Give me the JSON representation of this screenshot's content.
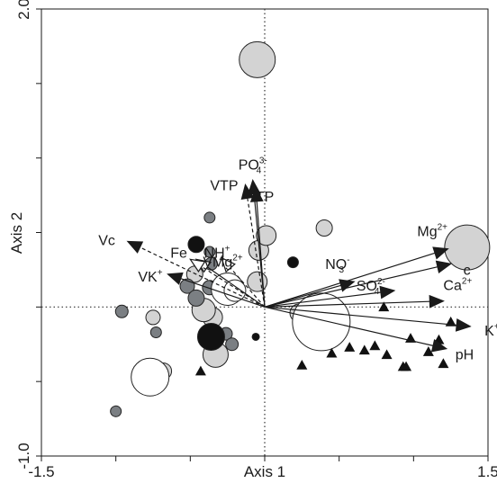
{
  "chart_data": {
    "type": "scatter",
    "title": "",
    "xlabel": "Axis 1",
    "ylabel": "Axis 2",
    "xlim": [
      -1.5,
      1.5
    ],
    "ylim": [
      -1.0,
      2.0
    ],
    "x_ticks": [
      -1.5,
      -1.0,
      -0.5,
      0.0,
      0.5,
      1.0,
      1.5
    ],
    "y_ticks": [
      -1.0,
      -0.5,
      0.0,
      0.5,
      1.0,
      1.5,
      2.0
    ],
    "x_tick_labels": [
      {
        "value": -1.5,
        "label": "-1.5"
      },
      {
        "value": 1.5,
        "label": "1.5"
      }
    ],
    "y_tick_labels": [
      {
        "value": 2.0,
        "label": "2.0"
      },
      {
        "value": -1.0,
        "label": "-1.0"
      }
    ],
    "origin_lines": "dotted",
    "grid": false,
    "vectors": [
      {
        "label": "PO",
        "sub": "4",
        "sup": "3-",
        "x": -0.08,
        "y": 0.85,
        "style": "solid",
        "head": "filled"
      },
      {
        "label": "VTP",
        "x": -0.13,
        "y": 0.82,
        "style": "dashed",
        "head": "filled"
      },
      {
        "label": "TP",
        "x": -0.06,
        "y": 0.8,
        "style": "solid",
        "head": "filled"
      },
      {
        "label": "Fe",
        "x": -0.46,
        "y": 0.32,
        "style": "solid",
        "head": "open"
      },
      {
        "label": "NH",
        "sub": "4",
        "sup": "+",
        "x": -0.29,
        "y": 0.33,
        "style": "dashed",
        "head": "open"
      },
      {
        "label": "Vc",
        "x": -0.92,
        "y": 0.44,
        "style": "dashed",
        "head": "filled"
      },
      {
        "label": "VMg",
        "sup": "2+",
        "x": -0.5,
        "y": 0.32,
        "style": "dashed",
        "head": "open"
      },
      {
        "label": "VK",
        "sup": "+",
        "x": -0.65,
        "y": 0.22,
        "style": "solid",
        "head": "filled"
      },
      {
        "label": "Mg",
        "sup": "2+",
        "x": 1.23,
        "y": 0.39,
        "style": "solid",
        "head": "filled"
      },
      {
        "label": "c",
        "x": 1.25,
        "y": 0.29,
        "style": "solid",
        "head": "filled"
      },
      {
        "label": "NO",
        "sub": "3",
        "sup": "-",
        "x": 0.6,
        "y": 0.17,
        "style": "solid",
        "head": "filled"
      },
      {
        "label": "SO",
        "sub": "4",
        "sup": "2-",
        "x": 0.87,
        "y": 0.11,
        "style": "solid",
        "head": "filled"
      },
      {
        "label": "Ca",
        "sup": "2+",
        "x": 1.2,
        "y": 0.04,
        "style": "solid",
        "head": "filled"
      },
      {
        "label": "K",
        "sup": "+",
        "x": 1.38,
        "y": -0.13,
        "style": "solid",
        "head": "filled"
      },
      {
        "label": "pH",
        "x": 1.22,
        "y": -0.28,
        "style": "solid",
        "head": "filled"
      }
    ],
    "series": [
      {
        "marker": "circle",
        "fill": "#d3d3d3",
        "points": [
          {
            "x": -0.05,
            "y": 1.66,
            "size": 20
          },
          {
            "x": -0.04,
            "y": 0.38,
            "size": 11
          },
          {
            "x": 0.01,
            "y": 0.48,
            "size": 11
          },
          {
            "x": 0.4,
            "y": 0.53,
            "size": 9
          },
          {
            "x": -0.05,
            "y": 0.17,
            "size": 11
          },
          {
            "x": -0.75,
            "y": -0.07,
            "size": 8
          },
          {
            "x": -0.68,
            "y": -0.43,
            "size": 9
          },
          {
            "x": -0.35,
            "y": -0.07,
            "size": 11
          },
          {
            "x": -0.33,
            "y": -0.32,
            "size": 14
          },
          {
            "x": -0.47,
            "y": 0.22,
            "size": 9
          },
          {
            "x": -0.41,
            "y": -0.02,
            "size": 13
          },
          {
            "x": -0.21,
            "y": 0.12,
            "size": 12
          },
          {
            "x": 0.23,
            "y": -0.04,
            "size": 10
          },
          {
            "x": 0.43,
            "y": -0.05,
            "size": 12
          },
          {
            "x": 1.36,
            "y": 0.4,
            "size": 25
          }
        ]
      },
      {
        "marker": "circle",
        "fill": "#7b7f83",
        "points": [
          {
            "x": -0.37,
            "y": 0.6,
            "size": 6
          },
          {
            "x": -0.37,
            "y": 0.37,
            "size": 6
          },
          {
            "x": -0.36,
            "y": 0.29,
            "size": 7
          },
          {
            "x": -0.52,
            "y": 0.14,
            "size": 8
          },
          {
            "x": -0.46,
            "y": 0.06,
            "size": 9
          },
          {
            "x": -0.37,
            "y": 0.13,
            "size": 8
          },
          {
            "x": -0.96,
            "y": -0.03,
            "size": 7
          },
          {
            "x": -0.73,
            "y": -0.17,
            "size": 6
          },
          {
            "x": -0.26,
            "y": -0.18,
            "size": 7
          },
          {
            "x": -0.37,
            "y": -0.19,
            "size": 8
          },
          {
            "x": -0.22,
            "y": -0.25,
            "size": 7
          },
          {
            "x": -1.0,
            "y": -0.7,
            "size": 6
          }
        ]
      },
      {
        "marker": "circle",
        "fill": "#111111",
        "points": [
          {
            "x": -0.46,
            "y": 0.42,
            "size": 9
          },
          {
            "x": -0.36,
            "y": -0.2,
            "size": 15
          },
          {
            "x": 0.19,
            "y": 0.3,
            "size": 6
          },
          {
            "x": -0.06,
            "y": -0.2,
            "size": 4
          }
        ]
      },
      {
        "marker": "circle",
        "fill": "#ffffff",
        "points": [
          {
            "x": 0.38,
            "y": -0.1,
            "size": 32
          },
          {
            "x": -0.77,
            "y": -0.47,
            "size": 21
          },
          {
            "x": -0.25,
            "y": 0.12,
            "size": 18
          },
          {
            "x": -0.2,
            "y": 0.11,
            "size": 12
          }
        ]
      },
      {
        "marker": "triangle",
        "fill": "#111111",
        "points": [
          {
            "x": 0.8,
            "y": 0.0
          },
          {
            "x": 1.25,
            "y": -0.1
          },
          {
            "x": 0.25,
            "y": -0.39
          },
          {
            "x": 0.45,
            "y": -0.31
          },
          {
            "x": 0.57,
            "y": -0.27
          },
          {
            "x": 0.67,
            "y": -0.29
          },
          {
            "x": 0.74,
            "y": -0.26
          },
          {
            "x": 0.82,
            "y": -0.32
          },
          {
            "x": 0.98,
            "y": -0.21
          },
          {
            "x": 1.1,
            "y": -0.3
          },
          {
            "x": 1.17,
            "y": -0.22
          },
          {
            "x": 1.2,
            "y": -0.38
          },
          {
            "x": 0.95,
            "y": -0.4
          },
          {
            "x": 0.93,
            "y": -0.4
          },
          {
            "x": -0.43,
            "y": -0.43
          }
        ]
      }
    ]
  }
}
